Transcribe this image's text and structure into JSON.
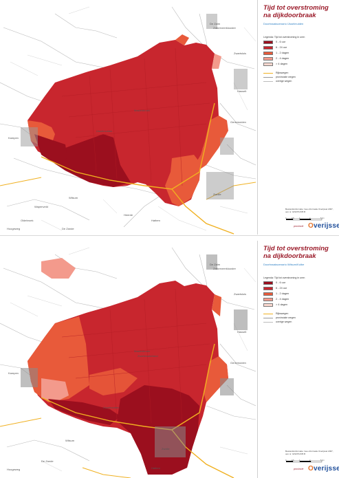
{
  "legend": {
    "title": "Tijd tot overstroming na dijkdoorbraak",
    "heading": "Legenda: Tijd tot overstroming in uren",
    "classes": [
      {
        "label": "0 - 6 uur",
        "color": "#9b0f1e"
      },
      {
        "label": "6 - 24 uur",
        "color": "#c8262e"
      },
      {
        "label": "1 - 2 dagen",
        "color": "#e85a3a"
      },
      {
        "label": "2 - 4 dagen",
        "color": "#f39a8c"
      },
      {
        "label": "> 4 dagen",
        "color": "#fbd9d0"
      }
    ],
    "roads": [
      {
        "label": "Rijkswegen",
        "color": "#f0b020"
      },
      {
        "label": "provinciale wegen",
        "color": "#999999"
      },
      {
        "label": "overige wegen",
        "color": "#bbbbbb"
      }
    ],
    "source": "Bestandsinformatie: Geo-informatie Overijssel 2007, opn.nr. GIS07K/235 B",
    "scale_labels": [
      "0",
      "0.5",
      "1",
      "2",
      "3",
      "4",
      "5 km"
    ],
    "logo_small": "provincie",
    "logo_main": "verijssel",
    "logo_o": "O"
  },
  "panels": [
    {
      "scenario": "Doorbraakscenario IJsselmuiden"
    },
    {
      "scenario": "Doorbraakscenario Wilsum/Kolbe"
    }
  ],
  "places": {
    "top": [
      "De Zalm",
      "Zalkerveerklooster",
      "Mastenbroek",
      "Zwartsluis",
      "Hasselt",
      "Genemuiden",
      "Kampen",
      "Wilsum",
      "IJsselmuiden",
      "Zwolle",
      "Hattem",
      "Heerde",
      "Wapenveld",
      "Oldebroek",
      "Hoogeweg",
      "De Zande"
    ],
    "bottom": [
      "De Zalm",
      "Zalkerveerklooster",
      "Mastenbroek",
      "Zwartsluis",
      "Hasselt",
      "Genemuiden",
      "Kampen",
      "Wilsum",
      "IJsselmuiden",
      "Zwolle",
      "Hattem",
      "Zwartewaterland",
      "Hoogeweg",
      "De Zande"
    ]
  }
}
